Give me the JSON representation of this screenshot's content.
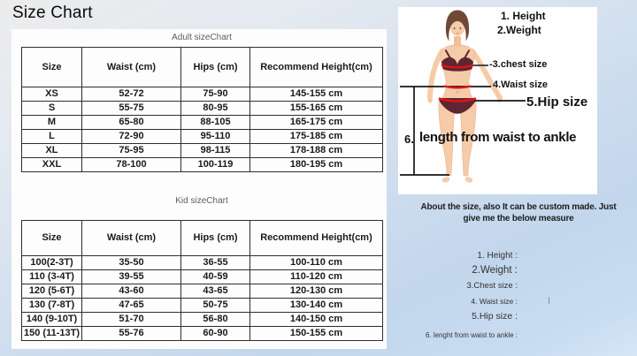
{
  "title": "Size Chart",
  "tables": {
    "adult": {
      "caption": "Adult sizeChart",
      "headers": [
        "Size",
        "Waist (cm)",
        "Hips (cm)",
        "Recommend Height(cm)"
      ],
      "rows": [
        [
          "XS",
          "52-72",
          "75-90",
          "145-155 cm"
        ],
        [
          "S",
          "55-75",
          "80-95",
          "155-165 cm"
        ],
        [
          "M",
          "65-80",
          "88-105",
          "165-175 cm"
        ],
        [
          "L",
          "72-90",
          "95-110",
          "175-185 cm"
        ],
        [
          "XL",
          "75-95",
          "98-115",
          "178-188 cm"
        ],
        [
          "XXL",
          "78-100",
          "100-119",
          "180-195 cm"
        ]
      ]
    },
    "kid": {
      "caption": "Kid sizeChart",
      "headers": [
        "Size",
        "Waist (cm)",
        "Hips (cm)",
        "Recommend Height(cm)"
      ],
      "rows": [
        [
          "100(2-3T)",
          "35-50",
          "36-55",
          "100-110 cm"
        ],
        [
          "110 (3-4T)",
          "39-55",
          "40-59",
          "110-120 cm"
        ],
        [
          "120 (5-6T)",
          "43-60",
          "43-65",
          "120-130 cm"
        ],
        [
          "130 (7-8T)",
          "47-65",
          "50-75",
          "130-140 cm"
        ],
        [
          "140 (9-10T)",
          "51-70",
          "56-80",
          "140-150 cm"
        ],
        [
          "150 (11-13T)",
          "55-76",
          "60-90",
          "150-155 cm"
        ]
      ]
    }
  },
  "figure": {
    "annotations": {
      "height": "1. Height",
      "weight": "2.Weight",
      "chest": "-3.chest size",
      "waist": "4.Waist size",
      "hip": "5.Hip size",
      "length_number": "6.",
      "length_text": "length from waist to ankle"
    }
  },
  "note": {
    "line1": "About the size, also It can be custom made. Just",
    "line2": "give me the below measure"
  },
  "measure_form": {
    "items": [
      "1. Height :",
      "2.Weight :",
      "3.Chest size :",
      "4. Waist size :",
      "5.Hip size :",
      "6. lenght from waist to ankle :"
    ]
  },
  "colors": {
    "measure_line_red": "#e21313",
    "annotation_black": "#161616",
    "table_border": "#2e2e2e",
    "hair_brown": "#6d4936",
    "skin": "#f5cba8",
    "bikini_maroon": "#5e2630",
    "background_blue": "#c2d6ec",
    "panel_white": "#fdfdfd"
  }
}
